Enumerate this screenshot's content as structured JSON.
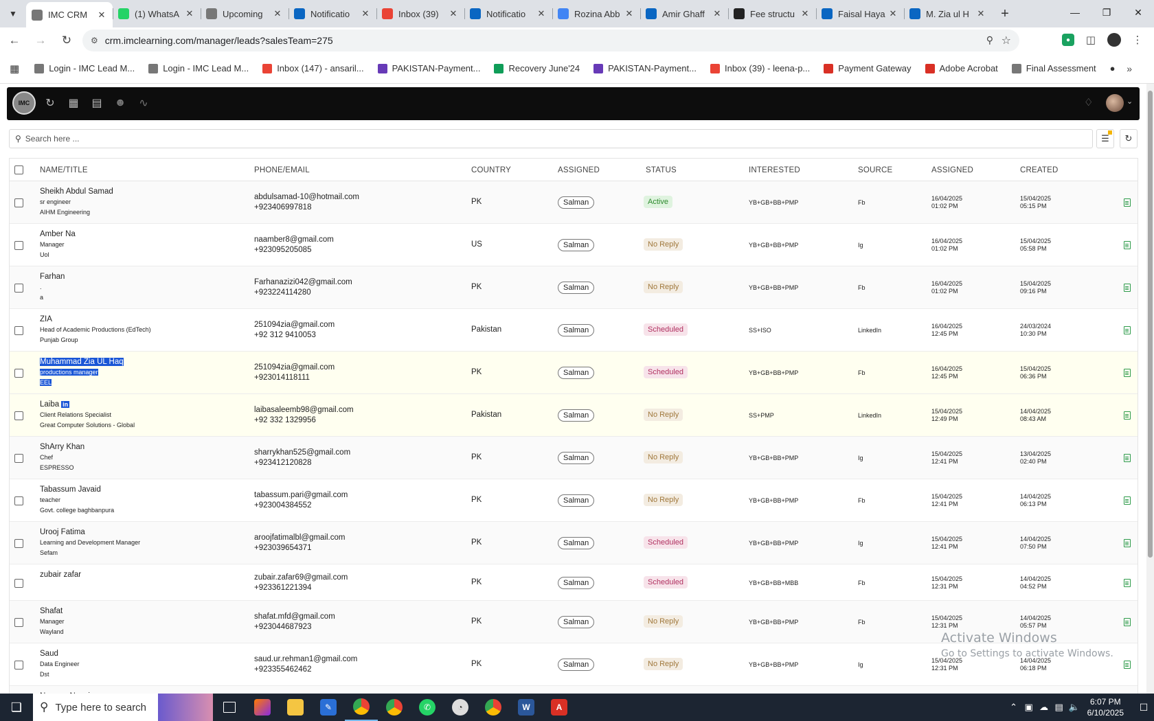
{
  "browser": {
    "tabs": [
      {
        "title": "IMC CRM",
        "icon": "imc-icon",
        "color": "#777777",
        "active": true
      },
      {
        "title": "(1) WhatsA",
        "icon": "whatsapp-icon",
        "color": "#25d366"
      },
      {
        "title": "Upcoming",
        "icon": "imc-icon",
        "color": "#777777"
      },
      {
        "title": "Notificatio",
        "icon": "linkedin-icon",
        "color": "#0a66c2"
      },
      {
        "title": "Inbox (39)",
        "icon": "gmail-icon",
        "color": "#ea4335"
      },
      {
        "title": "Notificatio",
        "icon": "linkedin-icon",
        "color": "#0a66c2"
      },
      {
        "title": "Rozina Abb",
        "icon": "google-icon",
        "color": "#4285f4"
      },
      {
        "title": "Amir Ghaff",
        "icon": "linkedin-icon",
        "color": "#0a66c2"
      },
      {
        "title": "Fee structu",
        "icon": "openai-icon",
        "color": "#222222"
      },
      {
        "title": "Faisal Haya",
        "icon": "linkedin-icon",
        "color": "#0a66c2"
      },
      {
        "title": "M. Zia ul H",
        "icon": "linkedin-icon",
        "color": "#0a66c2"
      }
    ],
    "url": "crm.imclearning.com/manager/leads?salesTeam=275",
    "bookmarks": [
      {
        "label": "Login - IMC Lead M...",
        "color": "#777777"
      },
      {
        "label": "Login - IMC Lead M...",
        "color": "#777777"
      },
      {
        "label": "Inbox (147) - ansaril...",
        "color": "#ea4335"
      },
      {
        "label": "PAKISTAN-Payment...",
        "color": "#673ab7"
      },
      {
        "label": "Recovery June'24",
        "color": "#0f9d58"
      },
      {
        "label": "PAKISTAN-Payment...",
        "color": "#673ab7"
      },
      {
        "label": "Inbox (39) - leena-p...",
        "color": "#ea4335"
      },
      {
        "label": "Payment Gateway",
        "color": "#d93025"
      },
      {
        "label": "Adobe Acrobat",
        "color": "#d93025"
      },
      {
        "label": "Final Assessment",
        "color": "#777777"
      }
    ]
  },
  "crm": {
    "search_placeholder": "Search here ...",
    "headers": {
      "name": "NAME/TITLE",
      "phone": "PHONE/EMAIL",
      "country": "COUNTRY",
      "assigned": "ASSIGNED",
      "status": "STATUS",
      "interested": "INTERESTED",
      "source": "SOURCE",
      "assigned_date": "ASSIGNED",
      "created": "CREATED"
    },
    "leads": [
      {
        "name": "Sheikh Abdul Samad",
        "title": "sr engineer",
        "company": "AIHM Engineering",
        "email": "abdulsamad-10@hotmail.com",
        "phone": "+923406997818",
        "country": "PK",
        "assigned": "Salman",
        "status": "Active",
        "status_kind": "active",
        "interested": "YB+GB+BB+PMP",
        "source": "Fb",
        "assigned_date": "16/04/2025",
        "assigned_time": "01:02 PM",
        "created_date": "15/04/2025",
        "created_time": "05:15 PM"
      },
      {
        "name": "Amber Na",
        "title": "Manager",
        "company": "Uol",
        "email": "naamber8@gmail.com",
        "phone": "+923095205085",
        "country": "US",
        "assigned": "Salman",
        "status": "No Reply",
        "status_kind": "noreply",
        "interested": "YB+GB+BB+PMP",
        "source": "Ig",
        "assigned_date": "16/04/2025",
        "assigned_time": "01:02 PM",
        "created_date": "15/04/2025",
        "created_time": "05:58 PM"
      },
      {
        "name": "Farhan",
        "title": ".",
        "company": "a",
        "email": "Farhanazizi042@gmail.com",
        "phone": "+923224114280",
        "country": "PK",
        "assigned": "Salman",
        "status": "No Reply",
        "status_kind": "noreply",
        "interested": "YB+GB+BB+PMP",
        "source": "Fb",
        "assigned_date": "16/04/2025",
        "assigned_time": "01:02 PM",
        "created_date": "15/04/2025",
        "created_time": "09:16 PM"
      },
      {
        "name": "ZIA",
        "title": "Head of Academic Productions (EdTech)",
        "company": "Punjab Group",
        "email": "251094zia@gmail.com",
        "phone": "+92 312 9410053",
        "country": "Pakistan",
        "assigned": "Salman",
        "status": "Scheduled",
        "status_kind": "scheduled",
        "interested": "SS+ISO",
        "source": "LinkedIn",
        "assigned_date": "16/04/2025",
        "assigned_time": "12:45 PM",
        "created_date": "24/03/2024",
        "created_time": "10:30 PM"
      },
      {
        "name": "Muhammad Zia UL Haq",
        "title": "productions manager",
        "company": "EEL",
        "email": "251094zia@gmail.com",
        "phone": "+923014118111",
        "country": "PK",
        "assigned": "Salman",
        "status": "Scheduled",
        "status_kind": "scheduled",
        "interested": "YB+GB+BB+PMP",
        "source": "Fb",
        "assigned_date": "16/04/2025",
        "assigned_time": "12:45 PM",
        "created_date": "15/04/2025",
        "created_time": "06:36 PM",
        "selected": true
      },
      {
        "name": "Laiba",
        "badge": "in",
        "title": "Client Relations Specialist",
        "company": "Great Computer Solutions - Global",
        "email": "laibasaleemb98@gmail.com",
        "phone": "+92 332 1329956",
        "country": "Pakistan",
        "assigned": "Salman",
        "status": "No Reply",
        "status_kind": "noreply",
        "interested": "SS+PMP",
        "source": "LinkedIn",
        "assigned_date": "15/04/2025",
        "assigned_time": "12:49 PM",
        "created_date": "14/04/2025",
        "created_time": "08:43 AM",
        "highlight": true
      },
      {
        "name": "ShArry Khan",
        "title": "Chef",
        "company": "ESPRESSO",
        "email": "sharrykhan525@gmail.com",
        "phone": "+923412120828",
        "country": "PK",
        "assigned": "Salman",
        "status": "No Reply",
        "status_kind": "noreply",
        "interested": "YB+GB+BB+PMP",
        "source": "Ig",
        "assigned_date": "15/04/2025",
        "assigned_time": "12:41 PM",
        "created_date": "13/04/2025",
        "created_time": "02:40 PM"
      },
      {
        "name": "Tabassum Javaid",
        "title": "teacher",
        "company": "Govt. college baghbanpura",
        "email": "tabassum.pari@gmail.com",
        "phone": "+923004384552",
        "country": "PK",
        "assigned": "Salman",
        "status": "No Reply",
        "status_kind": "noreply",
        "interested": "YB+GB+BB+PMP",
        "source": "Fb",
        "assigned_date": "15/04/2025",
        "assigned_time": "12:41 PM",
        "created_date": "14/04/2025",
        "created_time": "06:13 PM"
      },
      {
        "name": "Urooj Fatima",
        "title": "Learning and Development Manager",
        "company": "Sefam",
        "email": "aroojfatimalbl@gmail.com",
        "phone": "+923039654371",
        "country": "PK",
        "assigned": "Salman",
        "status": "Scheduled",
        "status_kind": "scheduled",
        "interested": "YB+GB+BB+PMP",
        "source": "Ig",
        "assigned_date": "15/04/2025",
        "assigned_time": "12:41 PM",
        "created_date": "14/04/2025",
        "created_time": "07:50 PM"
      },
      {
        "name": "zubair zafar",
        "title": "",
        "company": "",
        "email": "zubair.zafar69@gmail.com",
        "phone": "+923361221394",
        "country": "PK",
        "assigned": "Salman",
        "status": "Scheduled",
        "status_kind": "scheduled",
        "interested": "YB+GB+BB+MBB",
        "source": "Fb",
        "assigned_date": "15/04/2025",
        "assigned_time": "12:31 PM",
        "created_date": "14/04/2025",
        "created_time": "04:52 PM",
        "short": true
      },
      {
        "name": "Shafat",
        "title": "Manager",
        "company": "Wayland",
        "email": "shafat.mfd@gmail.com",
        "phone": "+923044687923",
        "country": "PK",
        "assigned": "Salman",
        "status": "No Reply",
        "status_kind": "noreply",
        "interested": "YB+GB+BB+PMP",
        "source": "Fb",
        "assigned_date": "15/04/2025",
        "assigned_time": "12:31 PM",
        "created_date": "14/04/2025",
        "created_time": "05:57 PM"
      },
      {
        "name": "Saud",
        "title": "Data Engineer",
        "company": "Dst",
        "email": "saud.ur.rehman1@gmail.com",
        "phone": "+923355462462",
        "country": "PK",
        "assigned": "Salman",
        "status": "No Reply",
        "status_kind": "noreply",
        "interested": "YB+GB+BB+PMP",
        "source": "Ig",
        "assigned_date": "15/04/2025",
        "assigned_time": "12:31 PM",
        "created_date": "14/04/2025",
        "created_time": "06:18 PM"
      },
      {
        "name": "Nageen Naqvi",
        "title": "",
        "company": "",
        "email": "",
        "phone": "",
        "country": "",
        "assigned": "",
        "status": "",
        "status_kind": "",
        "interested": "",
        "source": "",
        "assigned_date": "",
        "assigned_time": "",
        "created_date": "",
        "created_time": "",
        "partial": true
      }
    ]
  },
  "watermark": {
    "line1": "Activate Windows",
    "line2": "Go to Settings to activate Windows."
  },
  "taskbar": {
    "search_placeholder": "Type here to search",
    "time": "6:07 PM",
    "date": "6/10/2025"
  }
}
